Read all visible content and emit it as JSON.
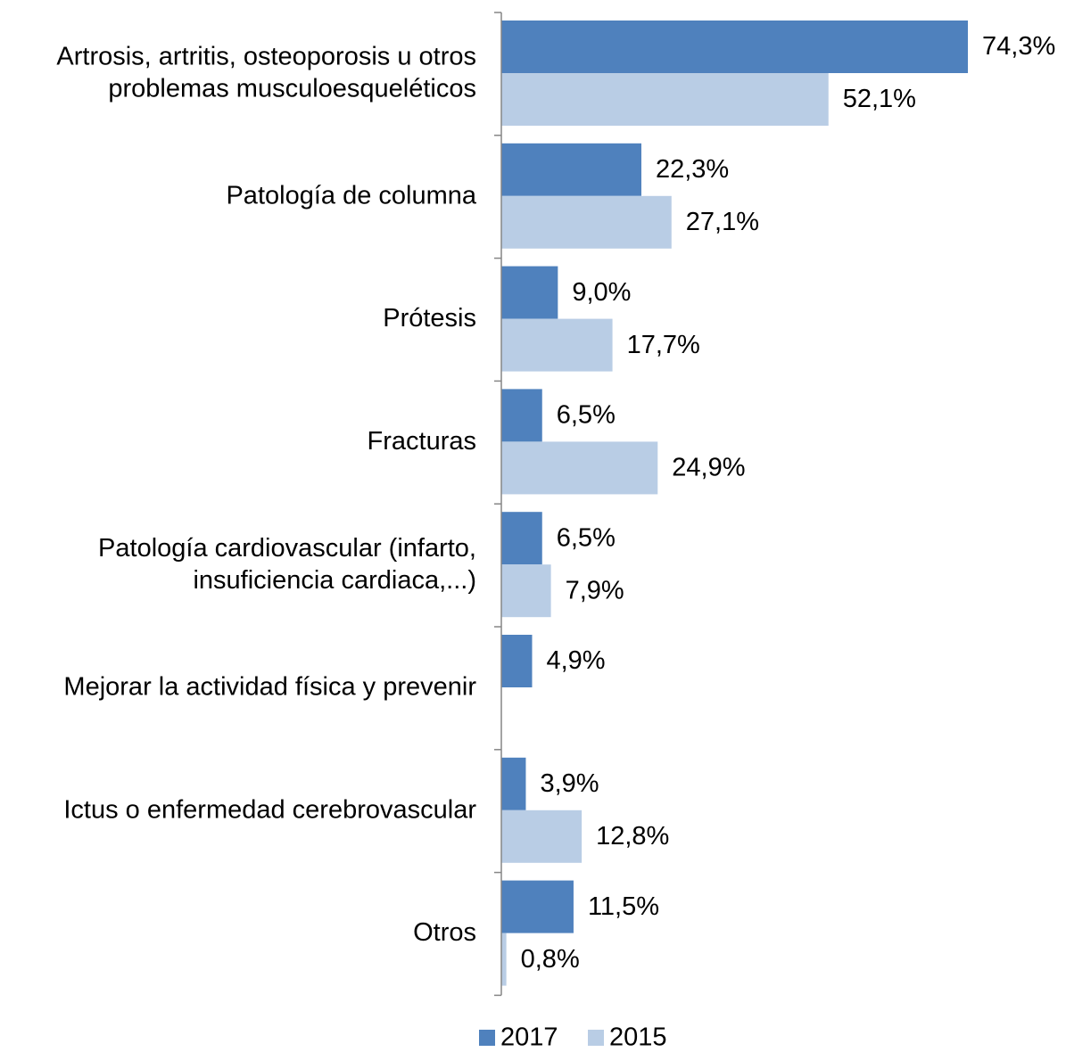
{
  "chart_data": {
    "type": "bar",
    "orientation": "horizontal",
    "categories": [
      [
        "Artrosis, artritis, osteoporosis u otros",
        "problemas musculoesqueléticos"
      ],
      [
        "Patología de columna"
      ],
      [
        "Prótesis"
      ],
      [
        "Fracturas"
      ],
      [
        "Patología cardiovascular (infarto,",
        "insuficiencia cardiaca,...)"
      ],
      [
        "Mejorar la actividad física y prevenir"
      ],
      [
        "Ictus o enfermedad cerebrovascular"
      ],
      [
        "Otros"
      ]
    ],
    "series": [
      {
        "name": "2017",
        "color": "#4F81BD",
        "values": [
          74.3,
          22.3,
          9.0,
          6.5,
          6.5,
          4.9,
          3.9,
          11.5
        ],
        "labels": [
          "74,3%",
          "22,3%",
          "9,0%",
          "6,5%",
          "6,5%",
          "4,9%",
          "3,9%",
          "11,5%"
        ]
      },
      {
        "name": "2015",
        "color": "#B9CDE5",
        "values": [
          52.1,
          27.1,
          17.7,
          24.9,
          7.9,
          null,
          12.8,
          0.8
        ],
        "labels": [
          "52,1%",
          "27,1%",
          "17,7%",
          "24,9%",
          "7,9%",
          "",
          "12,8%",
          "0,8%"
        ]
      }
    ],
    "xlim": [
      0,
      74.3
    ],
    "legend_position": "bottom",
    "grid": false
  }
}
